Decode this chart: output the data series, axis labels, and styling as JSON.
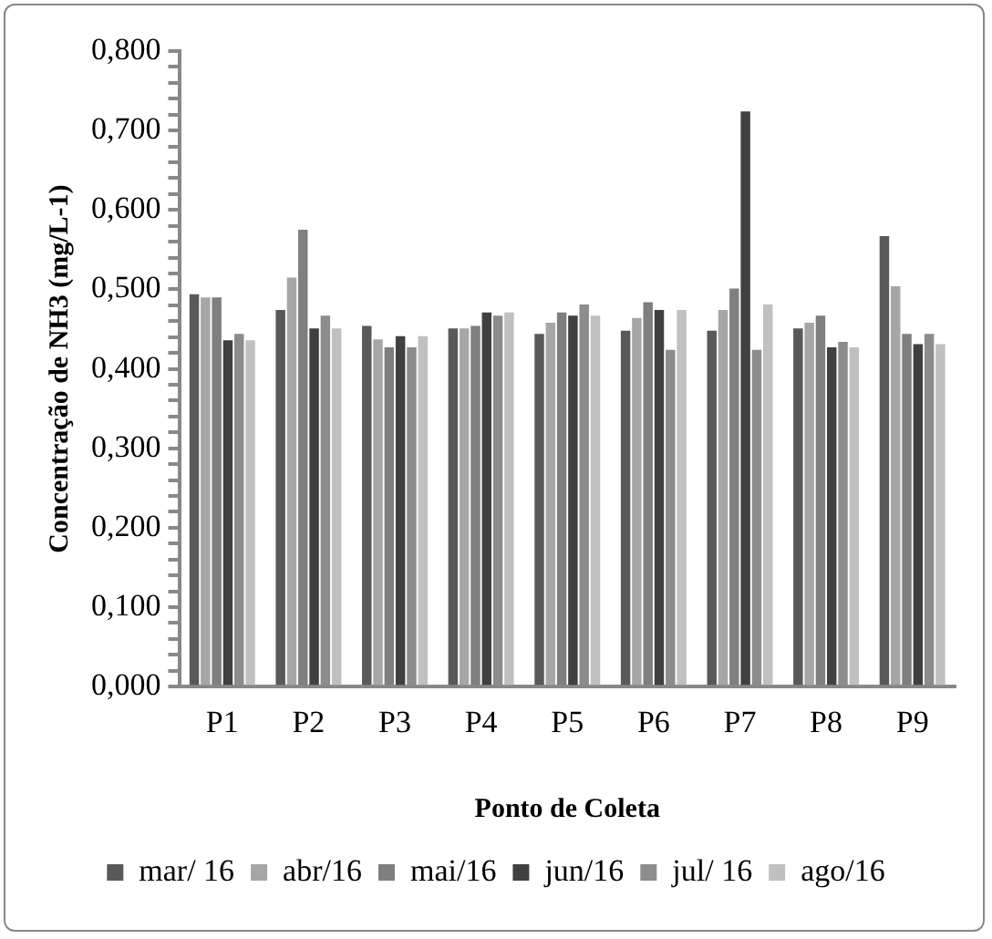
{
  "chart_data": {
    "type": "bar",
    "ylabel": "Concentração de NH3 (mg/L-1)",
    "xlabel": "Ponto de Coleta",
    "categories": [
      "P1",
      "P2",
      "P3",
      "P4",
      "P5",
      "P6",
      "P7",
      "P8",
      "P9"
    ],
    "series": [
      {
        "name": "mar/ 16",
        "color": "#595959",
        "values": [
          0.494,
          0.474,
          0.454,
          0.451,
          0.444,
          0.448,
          0.448,
          0.451,
          0.567
        ]
      },
      {
        "name": "abr/16",
        "color": "#a6a6a6",
        "values": [
          0.49,
          0.515,
          0.437,
          0.451,
          0.458,
          0.464,
          0.474,
          0.458,
          0.504
        ]
      },
      {
        "name": "mai/16",
        "color": "#7f7f7f",
        "values": [
          0.49,
          0.575,
          0.427,
          0.454,
          0.471,
          0.484,
          0.501,
          0.467,
          0.444
        ]
      },
      {
        "name": "jun/16",
        "color": "#404040",
        "values": [
          0.436,
          0.451,
          0.441,
          0.471,
          0.467,
          0.474,
          0.724,
          0.427,
          0.431
        ]
      },
      {
        "name": "jul/ 16",
        "color": "#8c8c8c",
        "values": [
          0.444,
          0.467,
          0.427,
          0.467,
          0.481,
          0.424,
          0.424,
          0.434,
          0.444
        ]
      },
      {
        "name": "ago/16",
        "color": "#c0c0c0",
        "values": [
          0.436,
          0.451,
          0.441,
          0.471,
          0.467,
          0.474,
          0.481,
          0.427,
          0.431
        ]
      }
    ],
    "ylim": [
      0,
      0.8
    ],
    "yticks": [
      {
        "value": 0,
        "label": "0,000"
      },
      {
        "value": 0.02,
        "label": null
      },
      {
        "value": 0.04,
        "label": null
      },
      {
        "value": 0.06,
        "label": null
      },
      {
        "value": 0.08,
        "label": null
      },
      {
        "value": 0.1,
        "label": "0,100"
      },
      {
        "value": 0.12,
        "label": null
      },
      {
        "value": 0.14,
        "label": null
      },
      {
        "value": 0.16,
        "label": null
      },
      {
        "value": 0.18,
        "label": null
      },
      {
        "value": 0.2,
        "label": "0,200"
      },
      {
        "value": 0.22,
        "label": null
      },
      {
        "value": 0.24,
        "label": null
      },
      {
        "value": 0.26,
        "label": null
      },
      {
        "value": 0.28,
        "label": null
      },
      {
        "value": 0.3,
        "label": "0,300"
      },
      {
        "value": 0.32,
        "label": null
      },
      {
        "value": 0.34,
        "label": null
      },
      {
        "value": 0.36,
        "label": null
      },
      {
        "value": 0.38,
        "label": null
      },
      {
        "value": 0.4,
        "label": "0,400"
      },
      {
        "value": 0.42,
        "label": null
      },
      {
        "value": 0.44,
        "label": null
      },
      {
        "value": 0.46,
        "label": null
      },
      {
        "value": 0.48,
        "label": null
      },
      {
        "value": 0.5,
        "label": "0,500"
      },
      {
        "value": 0.52,
        "label": null
      },
      {
        "value": 0.54,
        "label": null
      },
      {
        "value": 0.56,
        "label": null
      },
      {
        "value": 0.58,
        "label": null
      },
      {
        "value": 0.6,
        "label": "0,600"
      },
      {
        "value": 0.62,
        "label": null
      },
      {
        "value": 0.64,
        "label": null
      },
      {
        "value": 0.66,
        "label": null
      },
      {
        "value": 0.68,
        "label": null
      },
      {
        "value": 0.7,
        "label": "0,700"
      },
      {
        "value": 0.72,
        "label": null
      },
      {
        "value": 0.74,
        "label": null
      },
      {
        "value": 0.76,
        "label": null
      },
      {
        "value": 0.78,
        "label": null
      },
      {
        "value": 0.8,
        "label": "0,800"
      }
    ],
    "grid": false,
    "legend": "bottom"
  }
}
